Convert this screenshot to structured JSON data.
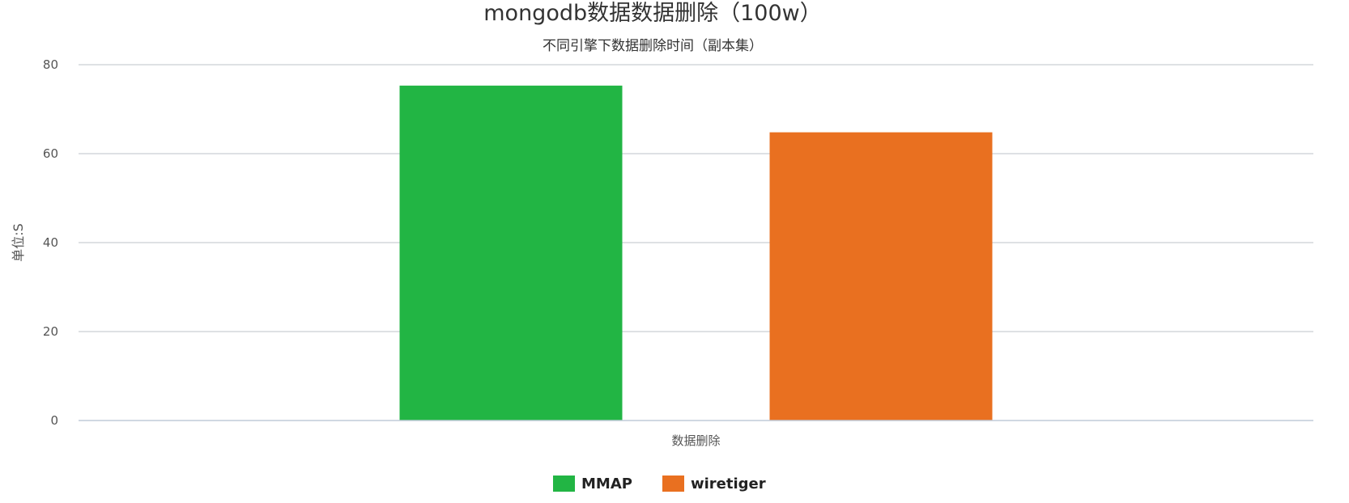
{
  "chart_data": {
    "type": "bar",
    "title": "mongodb数据数据删除（100w）",
    "subtitle": "不同引擎下数据删除时间（副本集）",
    "xlabel": "",
    "ylabel": "单位:S",
    "categories": [
      "数据删除"
    ],
    "series": [
      {
        "name": "MMAP",
        "color": "#22b544",
        "values": [
          75.3
        ]
      },
      {
        "name": "wiretiger",
        "color": "#e97020",
        "values": [
          64.8
        ]
      }
    ],
    "ylim": [
      0,
      80
    ],
    "yticks": [
      0,
      20,
      40,
      60,
      80
    ],
    "grid": true,
    "legend_position": "bottom-center"
  }
}
